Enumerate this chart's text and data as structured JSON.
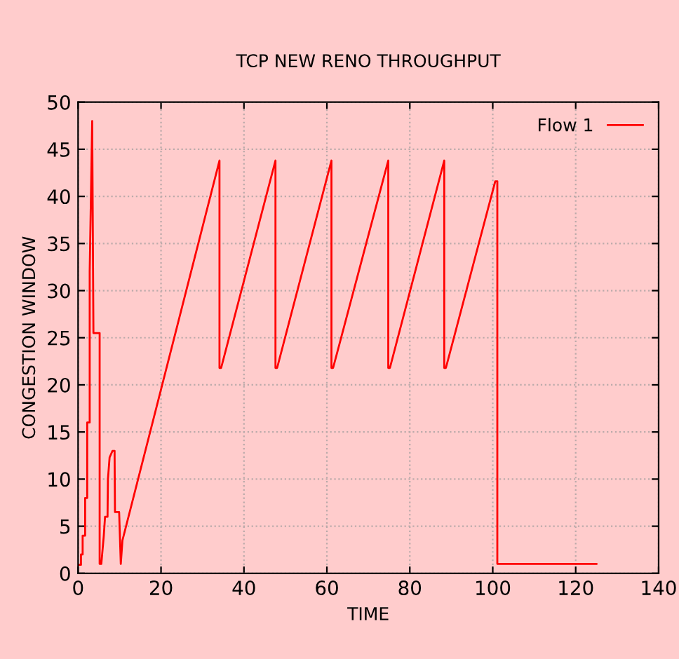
{
  "chart_data": {
    "type": "line",
    "title": "TCP NEW RENO THROUGHPUT",
    "xlabel": "TIME",
    "ylabel": "CONGESTION WINDOW",
    "xlim": [
      0,
      140
    ],
    "ylim": [
      0,
      50
    ],
    "xticks": [
      0,
      20,
      40,
      60,
      80,
      100,
      120,
      140
    ],
    "yticks": [
      0,
      5,
      10,
      15,
      20,
      25,
      30,
      35,
      40,
      45,
      50
    ],
    "grid": true,
    "legend": "top right",
    "line_style": "solid",
    "series": [
      {
        "name": "Flow 1",
        "color": "#ff0000",
        "x": [
          0.3,
          0.7,
          0.7,
          1.1,
          1.1,
          1.7,
          1.7,
          2.2,
          2.2,
          2.8,
          2.8,
          3.4,
          3.7,
          5.2,
          5.2,
          5.6,
          6.2,
          6.5,
          7.1,
          7.2,
          7.6,
          8.3,
          8.8,
          8.9,
          9.9,
          10.3,
          10.7,
          34.1,
          34.1,
          34.5,
          47.6,
          47.6,
          48.0,
          61.1,
          61.1,
          61.5,
          74.8,
          74.8,
          75.2,
          88.3,
          88.3,
          88.7,
          100.6,
          101.1,
          101.1,
          125
        ],
        "values": [
          0.9,
          0.9,
          2,
          2,
          4,
          4,
          8,
          8,
          16,
          16,
          32,
          48,
          25.5,
          25.5,
          1,
          1,
          4,
          6,
          6,
          10,
          12.3,
          13,
          13,
          6.5,
          6.5,
          1,
          3.5,
          43.8,
          21.8,
          21.8,
          43.8,
          21.8,
          21.8,
          43.8,
          21.8,
          21.8,
          43.8,
          21.8,
          21.8,
          43.8,
          21.8,
          21.8,
          41.6,
          41.6,
          1,
          1
        ]
      }
    ]
  }
}
